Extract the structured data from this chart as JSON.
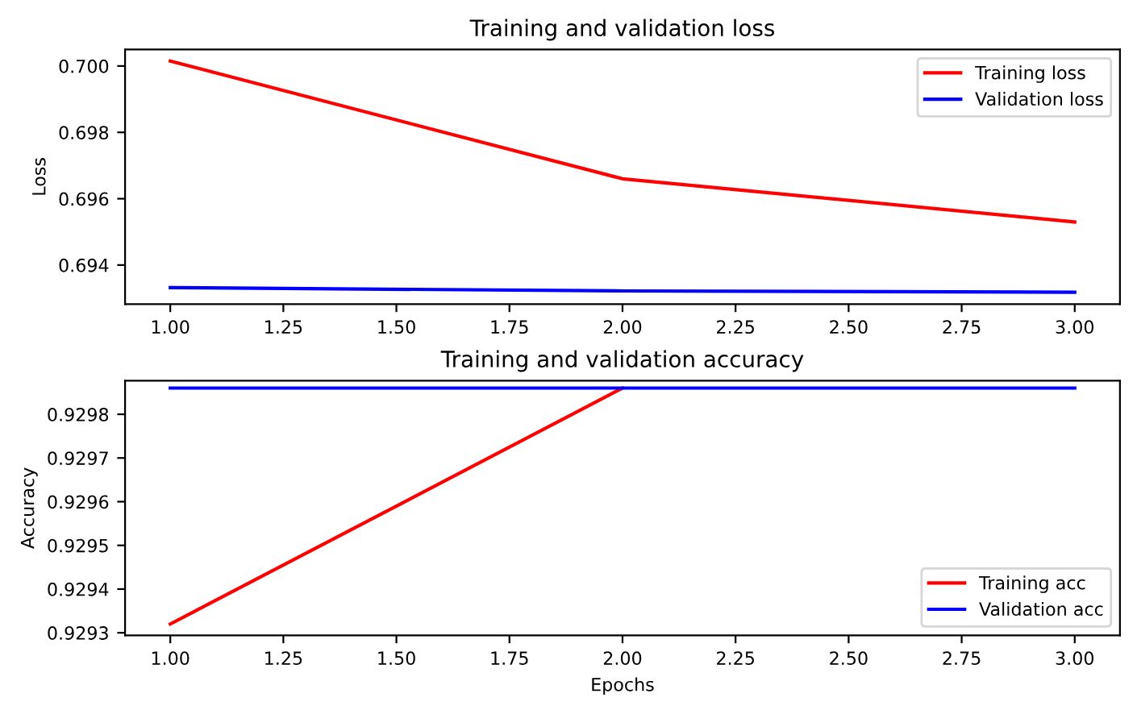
{
  "chart_data": [
    {
      "type": "line",
      "title": "Training and validation loss",
      "ylabel": "Loss",
      "x": [
        1,
        2,
        3
      ],
      "series": [
        {
          "name": "Training loss",
          "color": "#ff0000",
          "values": [
            0.70015,
            0.6966,
            0.6953
          ]
        },
        {
          "name": "Validation loss",
          "color": "#0000ff",
          "values": [
            0.69332,
            0.69322,
            0.69318
          ]
        }
      ],
      "xlim": [
        0.9,
        3.1
      ],
      "ylim": [
        0.69282,
        0.7005
      ],
      "xticks": [
        {
          "value": 1,
          "label": "1.00"
        },
        {
          "value": 1.25,
          "label": "1.25"
        },
        {
          "value": 1.5,
          "label": "1.50"
        },
        {
          "value": 1.75,
          "label": "1.75"
        },
        {
          "value": 2,
          "label": "2.00"
        },
        {
          "value": 2.25,
          "label": "2.25"
        },
        {
          "value": 2.5,
          "label": "2.50"
        },
        {
          "value": 2.75,
          "label": "2.75"
        },
        {
          "value": 3,
          "label": "3.00"
        }
      ],
      "yticks": [
        {
          "value": 0.694,
          "label": "0.694"
        },
        {
          "value": 0.696,
          "label": "0.696"
        },
        {
          "value": 0.698,
          "label": "0.698"
        },
        {
          "value": 0.7,
          "label": "0.700"
        }
      ],
      "legend": "top right",
      "grid": false
    },
    {
      "type": "line",
      "title": "Training and validation accuracy",
      "xlabel": "Epochs",
      "ylabel": "Accuracy",
      "x": [
        1,
        2,
        3
      ],
      "series": [
        {
          "name": "Training acc",
          "color": "#ff0000",
          "values": [
            0.92932,
            0.92986,
            null
          ]
        },
        {
          "name": "Validation acc",
          "color": "#0000ff",
          "values": [
            0.92986,
            0.92986,
            0.92986
          ]
        }
      ],
      "xlim": [
        0.9,
        3.1
      ],
      "ylim": [
        0.929294,
        0.929877
      ],
      "xticks": [
        {
          "value": 1,
          "label": "1.00"
        },
        {
          "value": 1.25,
          "label": "1.25"
        },
        {
          "value": 1.5,
          "label": "1.50"
        },
        {
          "value": 1.75,
          "label": "1.75"
        },
        {
          "value": 2,
          "label": "2.00"
        },
        {
          "value": 2.25,
          "label": "2.25"
        },
        {
          "value": 2.5,
          "label": "2.50"
        },
        {
          "value": 2.75,
          "label": "2.75"
        },
        {
          "value": 3,
          "label": "3.00"
        }
      ],
      "yticks": [
        {
          "value": 0.9293,
          "label": "0.9293"
        },
        {
          "value": 0.9294,
          "label": "0.9294"
        },
        {
          "value": 0.9295,
          "label": "0.9295"
        },
        {
          "value": 0.9296,
          "label": "0.9296"
        },
        {
          "value": 0.9297,
          "label": "0.9297"
        },
        {
          "value": 0.9298,
          "label": "0.9298"
        }
      ],
      "legend": "bottom right",
      "grid": false
    }
  ]
}
